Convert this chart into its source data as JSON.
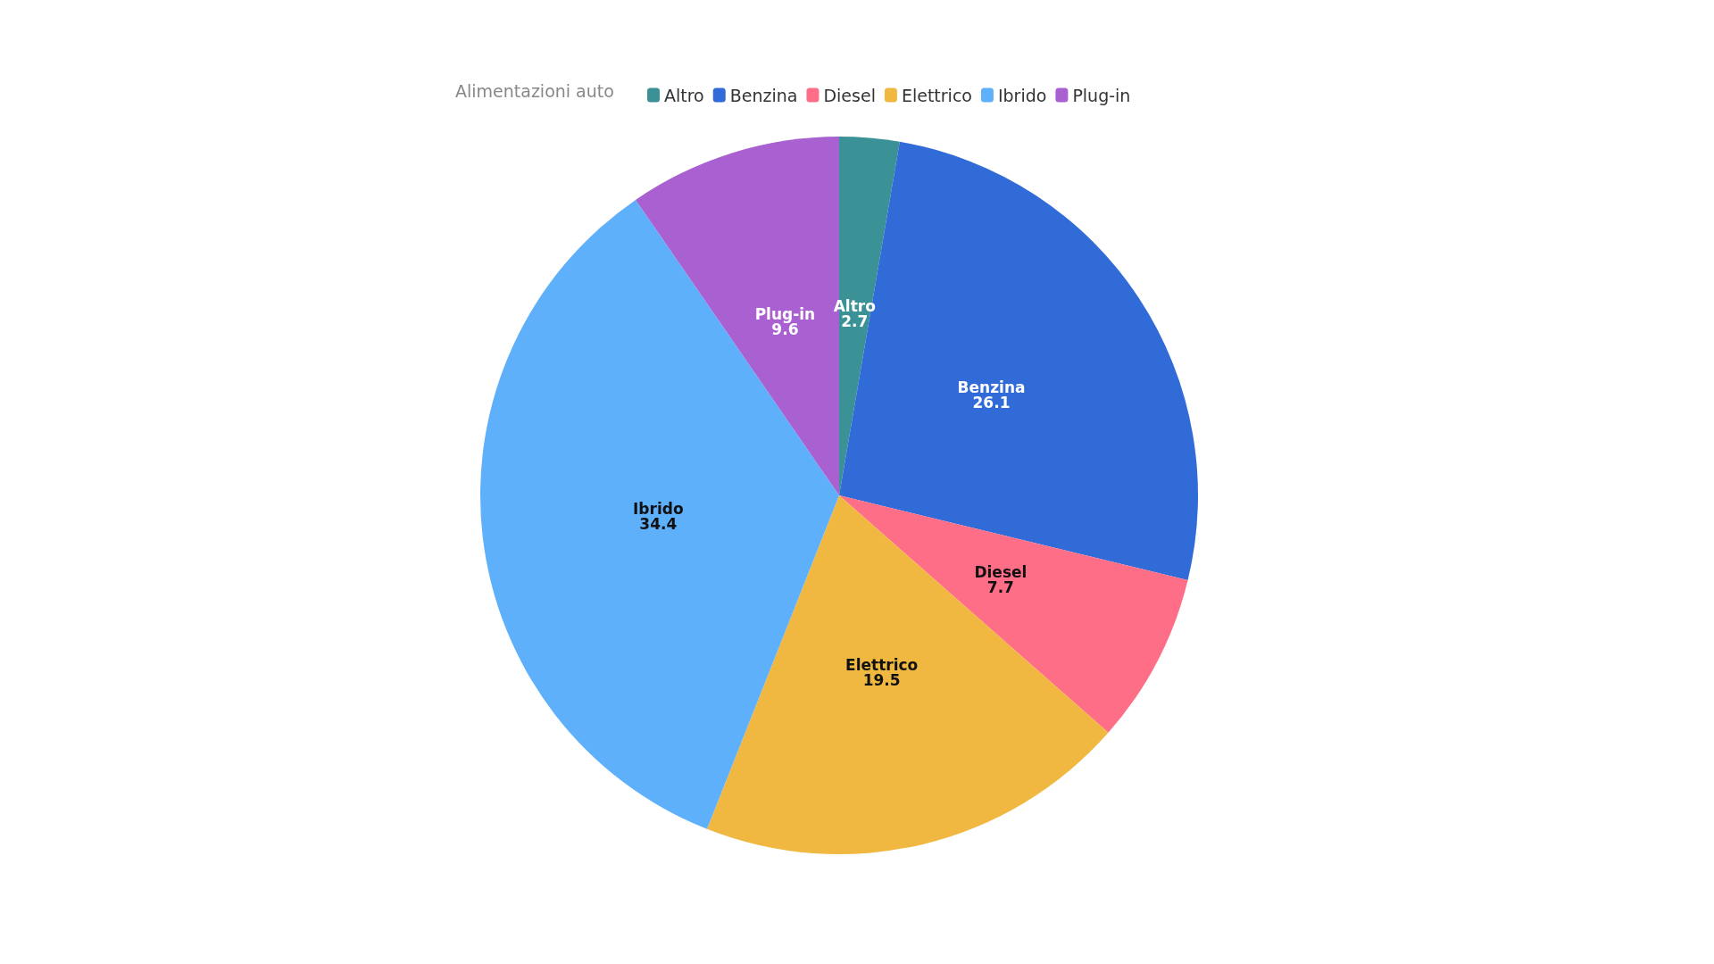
{
  "chart_data": {
    "type": "pie",
    "legend_title": "Alimentazioni auto",
    "legend": "top",
    "categories": [
      "Altro",
      "Benzina",
      "Diesel",
      "Elettrico",
      "Ibrido",
      "Plug-in"
    ],
    "values": [
      2.7,
      26.1,
      7.7,
      19.5,
      34.4,
      9.6
    ],
    "colors": [
      "#3a9196",
      "#316bd8",
      "#ff6e87",
      "#f0b840",
      "#5fb0fb",
      "#a960d0"
    ],
    "data_labels": true
  }
}
